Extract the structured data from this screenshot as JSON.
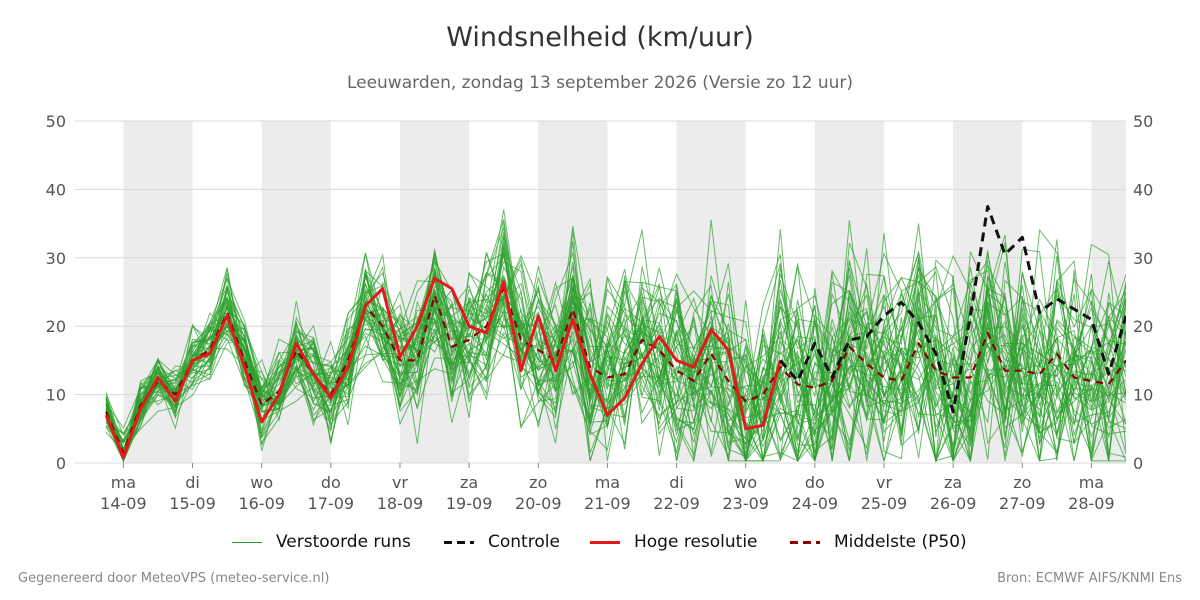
{
  "header": {
    "title": "Windsnelheid (km/uur)",
    "subtitle": "Leeuwarden, zondag 13 september 2026 (Versie zo 12 uur)"
  },
  "footer": {
    "left": "Gegenereerd door MeteoVPS (meteo-service.nl)",
    "right": "Bron: ECMWF AIFS/KNMI Ens"
  },
  "legend": {
    "ensemble": "Verstoorde runs",
    "control": "Controle",
    "hires": "Hoge resolutie",
    "median": "Middelste (P50)"
  },
  "colors": {
    "ensemble": "#2ca02c",
    "control": "#111111",
    "hires": "#e31a1c",
    "median": "#8b0000",
    "band": "#ececec",
    "grid": "#d8d8d8"
  },
  "chart_data": {
    "type": "line",
    "title": "Windsnelheid (km/uur)",
    "subtitle": "Leeuwarden, zondag 13 september 2026 (Versie zo 12 uur)",
    "xunit": "days from 14-09 00:00",
    "xlim": [
      -0.7,
      14.5
    ],
    "ylim": [
      0,
      50
    ],
    "yticks": [
      0,
      10,
      20,
      30,
      40,
      50
    ],
    "grid": true,
    "legend_position": "bottom",
    "xticks": [
      {
        "x": 0,
        "day": "ma",
        "date": "14-09"
      },
      {
        "x": 1,
        "day": "di",
        "date": "15-09"
      },
      {
        "x": 2,
        "day": "wo",
        "date": "16-09"
      },
      {
        "x": 3,
        "day": "do",
        "date": "17-09"
      },
      {
        "x": 4,
        "day": "vr",
        "date": "18-09"
      },
      {
        "x": 5,
        "day": "za",
        "date": "19-09"
      },
      {
        "x": 6,
        "day": "zo",
        "date": "20-09"
      },
      {
        "x": 7,
        "day": "ma",
        "date": "21-09"
      },
      {
        "x": 8,
        "day": "di",
        "date": "22-09"
      },
      {
        "x": 9,
        "day": "wo",
        "date": "23-09"
      },
      {
        "x": 10,
        "day": "do",
        "date": "24-09"
      },
      {
        "x": 11,
        "day": "vr",
        "date": "25-09"
      },
      {
        "x": 12,
        "day": "za",
        "date": "26-09"
      },
      {
        "x": 13,
        "day": "zo",
        "date": "27-09"
      },
      {
        "x": 14,
        "day": "ma",
        "date": "28-09"
      }
    ],
    "shaded_days": [
      [
        0,
        1
      ],
      [
        2,
        3
      ],
      [
        4,
        5
      ],
      [
        6,
        7
      ],
      [
        8,
        9
      ],
      [
        10,
        11
      ],
      [
        12,
        13
      ],
      [
        14,
        14.5
      ]
    ],
    "series": [
      {
        "name": "Hoge resolutie",
        "style": "solid",
        "x": [
          -0.25,
          0,
          0.25,
          0.5,
          0.75,
          1.0,
          1.25,
          1.5,
          1.75,
          2.0,
          2.25,
          2.5,
          2.75,
          3.0,
          3.25,
          3.5,
          3.75,
          4.0,
          4.25,
          4.5,
          4.75,
          5.0,
          5.25,
          5.5,
          5.75,
          6.0,
          6.25,
          6.5,
          6.75,
          7.0,
          7.25,
          7.5,
          7.75,
          8.0,
          8.25,
          8.5,
          8.75,
          9.0,
          9.25,
          9.5
        ],
        "values": [
          7,
          0.8,
          8,
          12.5,
          9,
          15,
          16,
          21.5,
          14,
          6,
          10,
          17.5,
          13,
          9.5,
          14,
          23,
          25.5,
          15.5,
          20,
          27,
          25.5,
          20,
          19,
          26.5,
          13.5,
          21.5,
          13.5,
          21,
          13,
          7,
          9.5,
          14.5,
          18.5,
          15,
          14,
          19.5,
          16.5,
          5,
          5.5,
          15
        ]
      },
      {
        "name": "Controle",
        "style": "dashed",
        "x": [
          9.5,
          9.75,
          10.0,
          10.25,
          10.5,
          10.75,
          11.0,
          11.25,
          11.5,
          11.75,
          12.0,
          12.25,
          12.5,
          12.75,
          13.0,
          13.25,
          13.5,
          13.75,
          14.0,
          14.25,
          14.5
        ],
        "values": [
          15,
          12,
          17.5,
          12.5,
          18,
          18.5,
          21.5,
          23.5,
          20.5,
          16,
          7.5,
          21.5,
          37.5,
          30.5,
          33,
          22,
          24,
          22.5,
          21,
          13,
          21.5
        ]
      },
      {
        "name": "Middelste (P50)",
        "style": "dashed",
        "x": [
          -0.25,
          0,
          0.25,
          0.5,
          0.75,
          1.0,
          1.25,
          1.5,
          1.75,
          2.0,
          2.25,
          2.5,
          2.75,
          3.0,
          3.25,
          3.5,
          3.75,
          4.0,
          4.25,
          4.5,
          4.75,
          5.0,
          5.25,
          5.5,
          5.75,
          6.0,
          6.25,
          6.5,
          6.75,
          7.0,
          7.25,
          7.5,
          7.75,
          8.0,
          8.25,
          8.5,
          8.75,
          9.0,
          9.25,
          9.5,
          9.75,
          10.0,
          10.25,
          10.5,
          10.75,
          11.0,
          11.25,
          11.5,
          11.75,
          12.0,
          12.25,
          12.5,
          12.75,
          13.0,
          13.25,
          13.5,
          13.75,
          14.0,
          14.25,
          14.5
        ],
        "values": [
          7.5,
          1.5,
          8.5,
          12,
          10,
          15,
          16.5,
          22,
          15,
          8.5,
          10.5,
          16.5,
          13,
          10,
          15,
          23,
          20,
          15,
          15,
          24.5,
          17,
          18,
          20,
          25.5,
          18,
          16.5,
          15,
          22.5,
          14,
          12.5,
          13,
          18,
          16.5,
          13.5,
          12,
          16,
          12,
          9,
          10,
          14,
          11.5,
          11,
          12,
          17,
          14.5,
          12.5,
          12,
          17.5,
          13.5,
          12.5,
          12.5,
          19,
          13.5,
          13.5,
          13,
          16,
          12.5,
          12,
          11.5,
          15
        ]
      }
    ],
    "ensemble_members": {
      "name": "Verstoorde runs",
      "count": 50,
      "x_step": 0.25,
      "x_start": -0.25,
      "mean_envelope": [
        7.5,
        1.5,
        8.5,
        12,
        10,
        15,
        16.5,
        22,
        15,
        8.5,
        10.5,
        16.5,
        13,
        10,
        15,
        23,
        20,
        15,
        15,
        24.5,
        17,
        18,
        20,
        25.5,
        18,
        16.5,
        15,
        22.5,
        14,
        12.5,
        13,
        18,
        16.5,
        13.5,
        12,
        16,
        12,
        9,
        10,
        14,
        11.5,
        11,
        12,
        17,
        14.5,
        12.5,
        12,
        17.5,
        13.5,
        12.5,
        12.5,
        19,
        13.5,
        13.5,
        13,
        16,
        12.5,
        12,
        11.5,
        15
      ],
      "spread_start": 2,
      "spread_end": 12
    }
  }
}
